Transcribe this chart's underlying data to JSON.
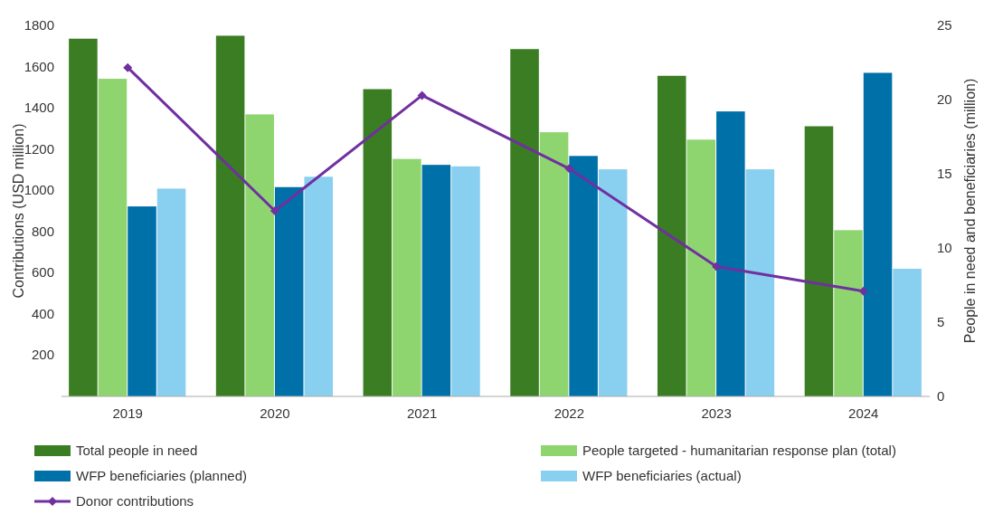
{
  "chart_data": {
    "type": "bar",
    "categories": [
      "2019",
      "2020",
      "2021",
      "2022",
      "2023",
      "2024"
    ],
    "ylabel": "Contributions (USD million)",
    "y2label": "People in need and beneficiaries (million)",
    "ylim": [
      0,
      1800
    ],
    "yticks": [
      200,
      400,
      600,
      800,
      1000,
      1200,
      1400,
      1600,
      1800
    ],
    "y2lim": [
      0,
      25
    ],
    "y2ticks": [
      0,
      5,
      10,
      15,
      20,
      25
    ],
    "series": [
      {
        "name": "Total people in need",
        "color": "#3a7d22",
        "axis": "y2",
        "values": [
          24.1,
          24.3,
          20.7,
          23.4,
          21.6,
          18.2
        ]
      },
      {
        "name": "People targeted - humanitarian response plan (total)",
        "color": "#8ed56f",
        "axis": "y2",
        "values": [
          21.4,
          19.0,
          16.0,
          17.8,
          17.3,
          11.2
        ]
      },
      {
        "name": "WFP beneficiaries (planned)",
        "color": "#0070a8",
        "axis": "y2",
        "values": [
          12.8,
          14.1,
          15.6,
          16.2,
          19.2,
          21.8
        ]
      },
      {
        "name": "WFP beneficiaries (actual)",
        "color": "#89cff0",
        "axis": "y2",
        "values": [
          14.0,
          14.8,
          15.5,
          15.3,
          15.3,
          8.6
        ]
      },
      {
        "name": "Donor contributions",
        "type": "line",
        "color": "#7030a0",
        "marker": "diamond",
        "values": [
          1595,
          900,
          1460,
          1105,
          630,
          510
        ]
      }
    ],
    "legend": "bottom",
    "grid": false
  }
}
